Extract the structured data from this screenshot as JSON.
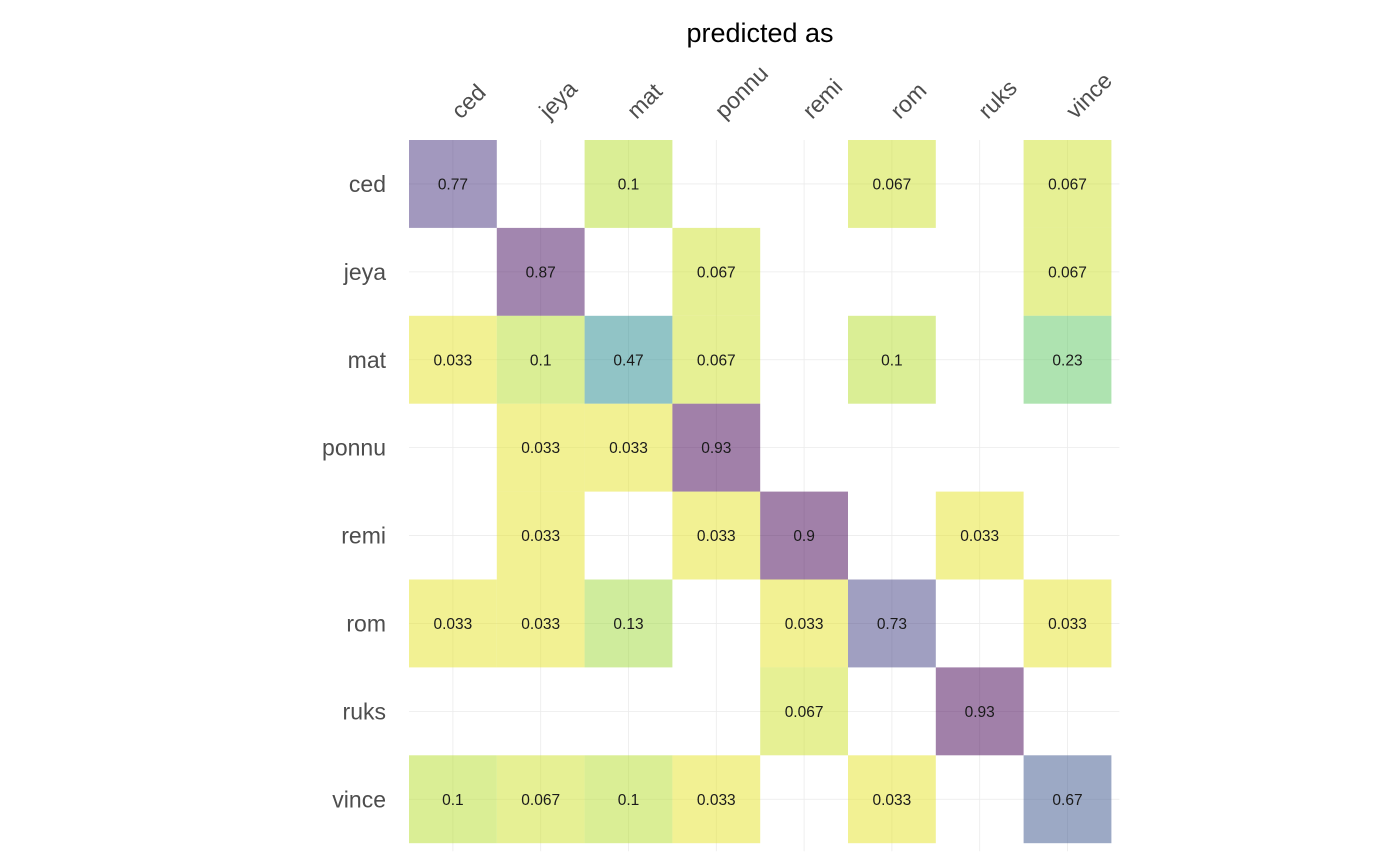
{
  "chart_data": {
    "type": "heatmap",
    "title": "predicted as",
    "x_categories": [
      "ced",
      "jeya",
      "mat",
      "ponnu",
      "remi",
      "rom",
      "ruks",
      "vince"
    ],
    "y_categories": [
      "ced",
      "jeya",
      "mat",
      "ponnu",
      "remi",
      "rom",
      "ruks",
      "vince"
    ],
    "colormap": "viridis",
    "cells": [
      {
        "row": "ced",
        "col": "ced",
        "value": 0.77
      },
      {
        "row": "ced",
        "col": "mat",
        "value": 0.1
      },
      {
        "row": "ced",
        "col": "rom",
        "value": 0.067
      },
      {
        "row": "ced",
        "col": "vince",
        "value": 0.067
      },
      {
        "row": "jeya",
        "col": "jeya",
        "value": 0.87
      },
      {
        "row": "jeya",
        "col": "ponnu",
        "value": 0.067
      },
      {
        "row": "jeya",
        "col": "vince",
        "value": 0.067
      },
      {
        "row": "mat",
        "col": "ced",
        "value": 0.033
      },
      {
        "row": "mat",
        "col": "jeya",
        "value": 0.1
      },
      {
        "row": "mat",
        "col": "mat",
        "value": 0.47
      },
      {
        "row": "mat",
        "col": "ponnu",
        "value": 0.067
      },
      {
        "row": "mat",
        "col": "rom",
        "value": 0.1
      },
      {
        "row": "mat",
        "col": "vince",
        "value": 0.23
      },
      {
        "row": "ponnu",
        "col": "jeya",
        "value": 0.033
      },
      {
        "row": "ponnu",
        "col": "mat",
        "value": 0.033
      },
      {
        "row": "ponnu",
        "col": "ponnu",
        "value": 0.93
      },
      {
        "row": "remi",
        "col": "jeya",
        "value": 0.033
      },
      {
        "row": "remi",
        "col": "ponnu",
        "value": 0.033
      },
      {
        "row": "remi",
        "col": "remi",
        "value": 0.9
      },
      {
        "row": "remi",
        "col": "ruks",
        "value": 0.033
      },
      {
        "row": "rom",
        "col": "ced",
        "value": 0.033
      },
      {
        "row": "rom",
        "col": "jeya",
        "value": 0.033
      },
      {
        "row": "rom",
        "col": "mat",
        "value": 0.13
      },
      {
        "row": "rom",
        "col": "remi",
        "value": 0.033
      },
      {
        "row": "rom",
        "col": "rom",
        "value": 0.73
      },
      {
        "row": "rom",
        "col": "vince",
        "value": 0.033
      },
      {
        "row": "ruks",
        "col": "remi",
        "value": 0.067
      },
      {
        "row": "ruks",
        "col": "ruks",
        "value": 0.93
      },
      {
        "row": "vince",
        "col": "ced",
        "value": 0.1
      },
      {
        "row": "vince",
        "col": "jeya",
        "value": 0.067
      },
      {
        "row": "vince",
        "col": "mat",
        "value": 0.1
      },
      {
        "row": "vince",
        "col": "ponnu",
        "value": 0.033
      },
      {
        "row": "vince",
        "col": "rom",
        "value": 0.033
      },
      {
        "row": "vince",
        "col": "vince",
        "value": 0.67
      }
    ]
  }
}
